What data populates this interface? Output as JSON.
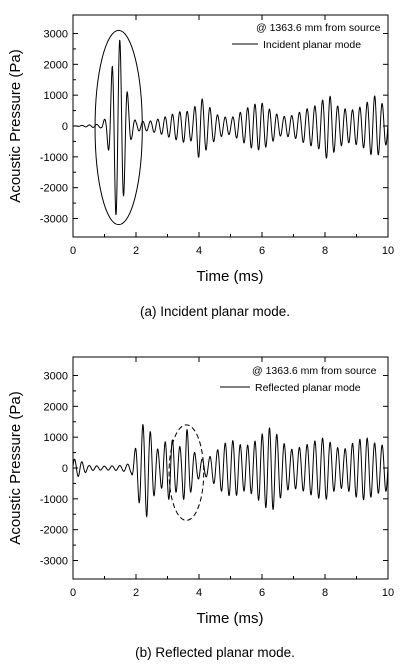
{
  "chart_data": [
    {
      "type": "line",
      "caption": "(a) Incident planar mode.",
      "xlabel": "Time (ms)",
      "ylabel": "Acoustic Pressure (Pa)",
      "xlim": [
        0,
        10
      ],
      "ylim": [
        -3600,
        3600
      ],
      "x_ticks": [
        0,
        2,
        4,
        6,
        8,
        10
      ],
      "y_ticks": [
        -3000,
        -2000,
        -1000,
        0,
        1000,
        2000,
        3000
      ],
      "legend": {
        "placement": "top-right",
        "annotation": "@ 1363.6 mm from source",
        "entries": [
          "Incident planar mode"
        ]
      },
      "annotation_shape": {
        "type": "ellipse",
        "style": "solid",
        "center_x": 1.45,
        "center_y": -50,
        "half_width_x": 0.75,
        "half_height_y": 3150
      },
      "series": [
        {
          "name": "Incident planar mode",
          "sample_step": 0.01,
          "approx_values_description_only": false,
          "envelope_points": [
            [
              0.0,
              0
            ],
            [
              0.9,
              60
            ],
            [
              1.05,
              300
            ],
            [
              1.15,
              900
            ],
            [
              1.25,
              2000
            ],
            [
              1.35,
              2700
            ],
            [
              1.45,
              2900
            ],
            [
              1.55,
              2600
            ],
            [
              1.65,
              1800
            ],
            [
              1.75,
              900
            ],
            [
              1.85,
              400
            ],
            [
              2.0,
              150
            ],
            [
              2.4,
              150
            ],
            [
              2.8,
              250
            ],
            [
              3.2,
              400
            ],
            [
              3.5,
              500
            ],
            [
              3.8,
              450
            ],
            [
              4.0,
              1000
            ],
            [
              4.3,
              650
            ],
            [
              4.6,
              350
            ],
            [
              5.0,
              250
            ],
            [
              5.4,
              500
            ],
            [
              5.7,
              700
            ],
            [
              6.0,
              750
            ],
            [
              6.3,
              500
            ],
            [
              6.6,
              300
            ],
            [
              7.0,
              350
            ],
            [
              7.4,
              550
            ],
            [
              7.8,
              700
            ],
            [
              8.1,
              1050
            ],
            [
              8.4,
              650
            ],
            [
              8.8,
              500
            ],
            [
              9.2,
              650
            ],
            [
              9.6,
              1000
            ],
            [
              10.0,
              500
            ]
          ],
          "dominant_frequency_khz": 4.2,
          "peak_extremes": [
            [
              1.35,
              2650
            ],
            [
              1.47,
              2650
            ],
            [
              1.42,
              -3050
            ],
            [
              1.53,
              -2750
            ]
          ]
        }
      ]
    },
    {
      "type": "line",
      "caption": "(b) Reflected planar mode.",
      "xlabel": "Time (ms)",
      "ylabel": "Acoustic Pressure (Pa)",
      "xlim": [
        0,
        10
      ],
      "ylim": [
        -3600,
        3600
      ],
      "x_ticks": [
        0,
        2,
        4,
        6,
        8,
        10
      ],
      "y_ticks": [
        -3000,
        -2000,
        -1000,
        0,
        1000,
        2000,
        3000
      ],
      "legend": {
        "placement": "top-right",
        "annotation": "@ 1363.6 mm from source",
        "entries": [
          "Reflected planar mode"
        ]
      },
      "annotation_shape": {
        "type": "ellipse",
        "style": "dashed",
        "center_x": 3.6,
        "center_y": -150,
        "half_width_x": 0.55,
        "half_height_y": 1550
      },
      "series": [
        {
          "name": "Reflected planar mode",
          "sample_step": 0.01,
          "envelope_points": [
            [
              0.0,
              300
            ],
            [
              0.2,
              250
            ],
            [
              0.5,
              80
            ],
            [
              1.0,
              60
            ],
            [
              1.5,
              80
            ],
            [
              1.85,
              150
            ],
            [
              2.05,
              900
            ],
            [
              2.2,
              1400
            ],
            [
              2.35,
              1500
            ],
            [
              2.55,
              900
            ],
            [
              2.75,
              500
            ],
            [
              2.95,
              900
            ],
            [
              3.1,
              1000
            ],
            [
              3.3,
              700
            ],
            [
              3.45,
              700
            ],
            [
              3.6,
              1350
            ],
            [
              3.75,
              700
            ],
            [
              3.95,
              350
            ],
            [
              4.2,
              250
            ],
            [
              4.5,
              500
            ],
            [
              4.8,
              800
            ],
            [
              5.1,
              900
            ],
            [
              5.4,
              700
            ],
            [
              5.7,
              800
            ],
            [
              6.1,
              1200
            ],
            [
              6.3,
              1350
            ],
            [
              6.6,
              900
            ],
            [
              6.9,
              600
            ],
            [
              7.3,
              700
            ],
            [
              7.6,
              850
            ],
            [
              8.0,
              1000
            ],
            [
              8.3,
              700
            ],
            [
              8.6,
              600
            ],
            [
              9.0,
              900
            ],
            [
              9.3,
              1000
            ],
            [
              9.6,
              800
            ],
            [
              10.0,
              700
            ]
          ],
          "dominant_frequency_khz": 4.2,
          "peak_extremes": [
            [
              2.2,
              1350
            ],
            [
              2.3,
              -1550
            ],
            [
              3.6,
              1300
            ],
            [
              3.65,
              -1450
            ],
            [
              6.3,
              1400
            ],
            [
              6.35,
              -1450
            ]
          ]
        }
      ]
    }
  ]
}
